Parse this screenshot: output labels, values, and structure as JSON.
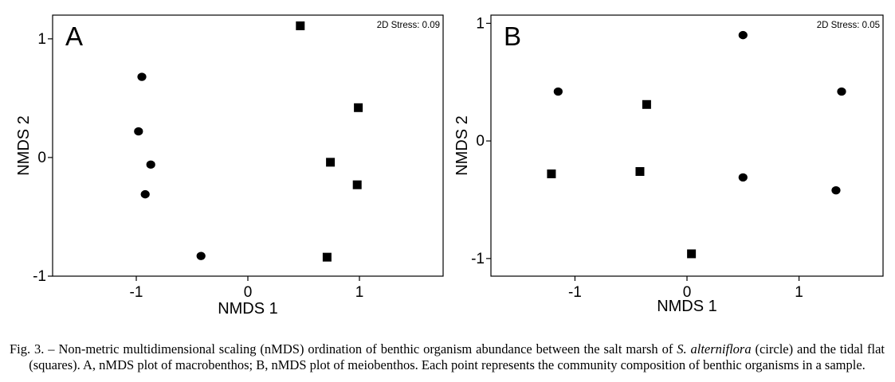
{
  "chart_data": [
    {
      "type": "scatter",
      "panel_label": "A",
      "stress_label": "2D Stress: 0.09",
      "xlabel": "NMDS 1",
      "ylabel": "NMDS 2",
      "xlim": [
        -1.75,
        1.75
      ],
      "ylim": [
        -1.0,
        1.2
      ],
      "xticks": [
        -1,
        0,
        1
      ],
      "yticks": [
        -1,
        0,
        1
      ],
      "series": [
        {
          "marker": "circle",
          "points": [
            [
              -0.95,
              0.68
            ],
            [
              -0.98,
              0.22
            ],
            [
              -0.87,
              -0.06
            ],
            [
              -0.92,
              -0.31
            ],
            [
              -0.42,
              -0.83
            ]
          ]
        },
        {
          "marker": "square",
          "points": [
            [
              0.47,
              1.11
            ],
            [
              0.99,
              0.42
            ],
            [
              0.74,
              -0.04
            ],
            [
              0.98,
              -0.23
            ],
            [
              0.71,
              -0.84
            ]
          ]
        }
      ]
    },
    {
      "type": "scatter",
      "panel_label": "B",
      "stress_label": "2D Stress: 0.05",
      "xlabel": "NMDS 1",
      "ylabel": "NMDS 2",
      "xlim": [
        -1.75,
        1.75
      ],
      "ylim": [
        -1.15,
        1.07
      ],
      "xticks": [
        -1,
        0,
        1
      ],
      "yticks": [
        -1,
        0,
        1
      ],
      "series": [
        {
          "marker": "circle",
          "points": [
            [
              -1.15,
              0.42
            ],
            [
              0.5,
              0.9
            ],
            [
              1.38,
              0.42
            ],
            [
              0.5,
              -0.31
            ],
            [
              1.33,
              -0.42
            ]
          ]
        },
        {
          "marker": "square",
          "points": [
            [
              -1.21,
              -0.28
            ],
            [
              -0.36,
              0.31
            ],
            [
              -0.42,
              -0.26
            ],
            [
              0.04,
              -0.96
            ]
          ]
        }
      ]
    }
  ],
  "caption": {
    "before_species": "Fig. 3. – Non-metric multidimensional scaling (nMDS) ordination of benthic organism abundance between the salt marsh of ",
    "species": "S. alterniflora",
    "after_species": " (circle) and the tidal flat (squares). A, nMDS plot of macrobenthos; B, nMDS plot of meiobenthos. Each point represents the community composition of benthic organisms in a sample."
  }
}
